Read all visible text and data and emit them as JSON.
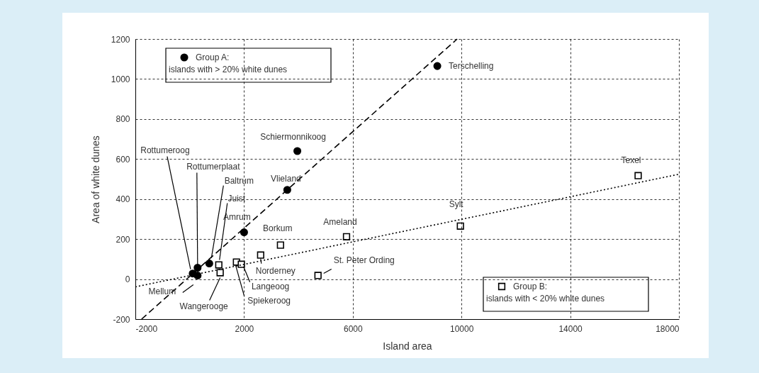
{
  "chart_data": {
    "type": "scatter",
    "xlabel": "Island area",
    "ylabel": "Area of white dunes",
    "xlim": [
      -2000,
      18000
    ],
    "xticks": [
      -2000,
      2000,
      6000,
      10000,
      14000,
      18000
    ],
    "ylim": [
      -200,
      1200
    ],
    "yticks": [
      -200,
      0,
      200,
      400,
      600,
      800,
      1000,
      1200
    ],
    "grid": true,
    "legend": "top left",
    "series": [
      {
        "name": "Group A:\nislands with > 20% white dunes",
        "marker": "circle",
        "color": "#000000",
        "x": [
          9110,
          3960,
          3590,
          2000,
          110,
          290,
          720,
          290
        ],
        "values": [
          1065,
          640,
          446,
          234,
          28,
          57,
          78,
          18
        ]
      },
      {
        "name": "Group B:\nislands with < 20% white dunes",
        "marker": "square",
        "color": "#000000",
        "x": [
          1070,
          1120,
          1720,
          1900,
          2610,
          3340,
          4720,
          5770,
          9960,
          16500
        ],
        "values": [
          71,
          32,
          85,
          74,
          120,
          170,
          18,
          212,
          265,
          517
        ]
      },
      {
        "type": "line",
        "line_style": "dashed",
        "color": "#000000",
        "x": [
          -1770,
          9840
        ],
        "values": [
          -200,
          1200
        ]
      },
      {
        "type": "line",
        "line_style": "dotted",
        "color": "#000000",
        "x": [
          -2000,
          18000
        ],
        "values": [
          -39,
          524
        ]
      }
    ],
    "annotations": [
      {
        "text": "Terschelling",
        "x": 9110,
        "y": 1065
      },
      {
        "text": "Schiermonnikoog",
        "x": 3960,
        "y": 640
      },
      {
        "text": "Vlieland",
        "x": 3590,
        "y": 446
      },
      {
        "text": "Amrum",
        "x": 2000,
        "y": 234
      },
      {
        "text": "Rottumeroog",
        "x": 110,
        "y": 28
      },
      {
        "text": "Rottumerplaat",
        "x": 290,
        "y": 57
      },
      {
        "text": "Baltrum",
        "x": 720,
        "y": 78
      },
      {
        "text": "Juist",
        "x": 1070,
        "y": 71
      },
      {
        "text": "Mellum",
        "x": 290,
        "y": 18
      },
      {
        "text": "Wangerooge",
        "x": 1120,
        "y": 32
      },
      {
        "text": "Spiekeroog",
        "x": 1720,
        "y": 85
      },
      {
        "text": "Langeoog",
        "x": 1900,
        "y": 74
      },
      {
        "text": "Norderney",
        "x": 2610,
        "y": 120
      },
      {
        "text": "Borkum",
        "x": 3340,
        "y": 170
      },
      {
        "text": "St. Peter Ording",
        "x": 4720,
        "y": 18
      },
      {
        "text": "Ameland",
        "x": 5770,
        "y": 212
      },
      {
        "text": "Sylt",
        "x": 9960,
        "y": 265
      },
      {
        "text": "Texel",
        "x": 16500,
        "y": 517
      }
    ]
  }
}
